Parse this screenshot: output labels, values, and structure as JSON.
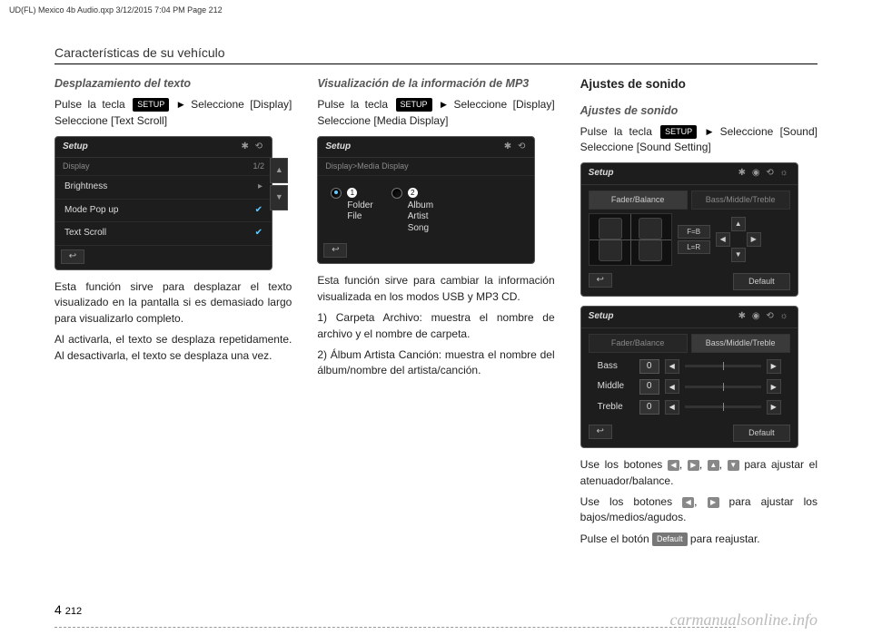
{
  "header_line": "UD(FL) Mexico 4b Audio.qxp  3/12/2015  7:04 PM  Page 212",
  "section_title": "Características de su vehículo",
  "col1": {
    "subhead": "Desplazamiento del texto",
    "line1a": "Pulse la tecla ",
    "setup": "SETUP",
    "line1b": " Seleccione [Display]  Seleccione [Text Scroll]",
    "screen": {
      "title": "Setup",
      "crumb": "Display",
      "page": "1/2",
      "row1": "Brightness",
      "row2": "Mode Pop up",
      "row3": "Text Scroll"
    },
    "p1": "Esta función sirve para desplazar el texto visualizado en la pantalla si es demasiado largo para visualizarlo completo.",
    "p2": "Al activarla, el texto se desplaza repetidamente. Al desactivarla, el texto se desplaza una vez."
  },
  "col2": {
    "subhead": "Visualización de la información de MP3",
    "line1a": "Pulse la tecla ",
    "setup": "SETUP",
    "line1b": " Seleccione [Display]   Seleccione [Media Display]",
    "screen": {
      "title": "Setup",
      "crumb": "Display>Media Display",
      "opt1a": "Folder",
      "opt1b": "File",
      "opt2a": "Album",
      "opt2b": "Artist",
      "opt2c": "Song"
    },
    "p1": "Esta función sirve para cambiar la información visualizada en los modos USB y MP3 CD.",
    "li1": "1) Carpeta Archivo: muestra el nombre de archivo y el nombre de carpeta.",
    "li2": "2) Álbum Artista Canción: muestra el nombre del álbum/nombre del artista/canción."
  },
  "col3": {
    "bighead": "Ajustes de sonido",
    "subhead": "Ajustes de sonido",
    "line1a": "Pulse la tecla ",
    "setup": "SETUP",
    "line1b": " Seleccione [Sound]   Seleccione [Sound Setting]",
    "screen1": {
      "title": "Setup",
      "tab1": "Fader/Balance",
      "tab2": "Bass/Middle/Treble",
      "fb": "F=B",
      "lr": "L=R",
      "default": "Default"
    },
    "screen2": {
      "title": "Setup",
      "tab1": "Fader/Balance",
      "tab2": "Bass/Middle/Treble",
      "r1": "Bass",
      "v1": "0",
      "r2": "Middle",
      "v2": "0",
      "r3": "Treble",
      "v3": "0",
      "default": "Default"
    },
    "p1a": "Use los botones ",
    "p1b": " para ajustar el atenuador/balance.",
    "p2a": "Use los botones ",
    "p2b": " para ajustar los bajos/medios/agudos.",
    "p3a": "Pulse el botón ",
    "default": "Default",
    "p3b": " para reajustar."
  },
  "pagenum_chapter": "4",
  "pagenum_page": "212",
  "watermark": "carmanualsonline.info"
}
